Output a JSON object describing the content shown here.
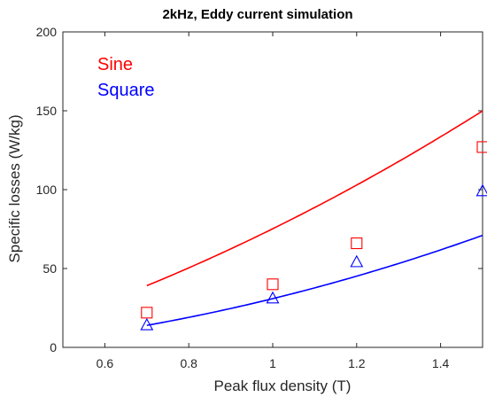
{
  "chart_data": {
    "type": "line",
    "title": "2kHz, Eddy current simulation",
    "xlabel": "Peak flux density (T)",
    "ylabel": "Specific losses (W/kg)",
    "xlim": [
      0.5,
      1.5
    ],
    "ylim": [
      0,
      200
    ],
    "xticks": [
      0.6,
      0.8,
      1.0,
      1.2,
      1.4
    ],
    "xtick_labels": [
      "0.6",
      "0.8",
      "1",
      "1.2",
      "1.4"
    ],
    "yticks": [
      0,
      50,
      100,
      150,
      200
    ],
    "ytick_labels": [
      "0",
      "50",
      "100",
      "150",
      "200"
    ],
    "grid": false,
    "legend_position": "top-left",
    "x": [
      0.7,
      1.0,
      1.2,
      1.5
    ],
    "series": [
      {
        "name": "Sine",
        "color": "#ff0000",
        "marker": "square",
        "values": [
          22,
          40,
          66,
          127
        ],
        "fit": [
          -19.6,
          58.4,
          36.4
        ]
      },
      {
        "name": "Square",
        "color": "#0000ff",
        "marker": "triangle",
        "values": [
          14,
          31,
          54,
          99
        ],
        "fit": [
          -4.7,
          5.85,
          29.75
        ]
      }
    ]
  }
}
